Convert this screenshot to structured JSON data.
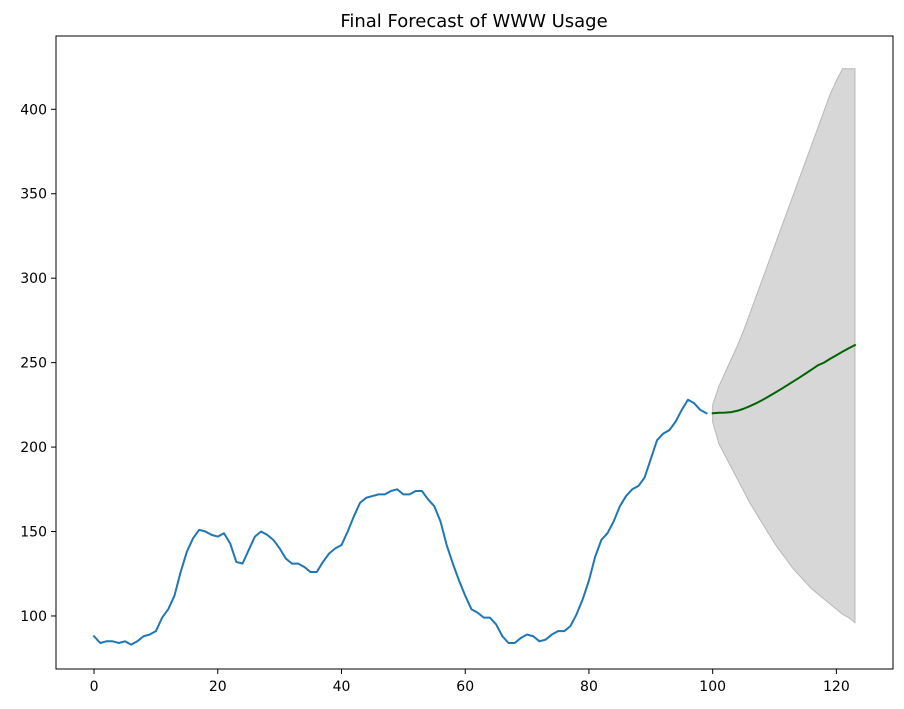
{
  "chart_data": {
    "type": "line",
    "title": "Final Forecast of WWW Usage",
    "xlabel": "",
    "ylabel": "",
    "xlim": [
      -6.15,
      129.15
    ],
    "ylim": [
      68.6,
      443.4
    ],
    "x_ticks": [
      0,
      20,
      40,
      60,
      80,
      100,
      120
    ],
    "y_ticks": [
      100,
      150,
      200,
      250,
      300,
      350,
      400
    ],
    "x_tick_labels": [
      "0",
      "20",
      "40",
      "60",
      "80",
      "100",
      "120"
    ],
    "y_tick_labels": [
      "100",
      "150",
      "200",
      "250",
      "300",
      "350",
      "400"
    ],
    "grid": false,
    "legend": "none",
    "series": [
      {
        "color": "#1f77b4",
        "x_start": 0,
        "values": [
          88,
          84,
          85,
          85,
          84,
          85,
          83,
          85,
          88,
          89,
          91,
          99,
          104,
          112,
          126,
          138,
          146,
          151,
          150,
          148,
          147,
          149,
          143,
          132,
          131,
          139,
          147,
          150,
          148,
          145,
          140,
          134,
          131,
          131,
          129,
          126,
          126,
          132,
          137,
          140,
          142,
          150,
          159,
          167,
          170,
          171,
          172,
          172,
          174,
          175,
          172,
          172,
          174,
          174,
          169,
          165,
          156,
          142,
          131,
          121,
          112,
          104,
          102,
          99,
          99,
          95,
          88,
          84,
          84,
          87,
          89,
          88,
          85,
          86,
          89,
          91,
          91,
          94,
          101,
          110,
          121,
          135,
          145,
          149,
          156,
          165,
          171,
          175,
          177,
          182,
          193,
          204,
          208,
          210,
          215,
          222,
          228,
          226,
          222,
          220
        ]
      },
      {
        "color": "#006400",
        "x_start": 100,
        "values": [
          220.0,
          220.3,
          220.4,
          220.7,
          221.5,
          222.7,
          224.2,
          225.9,
          227.8,
          229.9,
          232.0,
          234.2,
          236.5,
          238.8,
          241.1,
          243.5,
          245.9,
          248.4,
          250.0,
          252.3,
          254.4,
          256.5,
          258.5,
          260.4
        ]
      }
    ],
    "confidence_band": {
      "color": "#d3d3d3",
      "x_start": 100,
      "lower": [
        215,
        202,
        195,
        188,
        181,
        174,
        167,
        161,
        155,
        149,
        143,
        138,
        133,
        128,
        124,
        120,
        116,
        113,
        110,
        107,
        104,
        101,
        99,
        96
      ],
      "upper": [
        225,
        236,
        244,
        252,
        260,
        269,
        279,
        289,
        299,
        309,
        319,
        329,
        339,
        349,
        359,
        369,
        379,
        389,
        399,
        409,
        417,
        424,
        424,
        424
      ]
    }
  }
}
